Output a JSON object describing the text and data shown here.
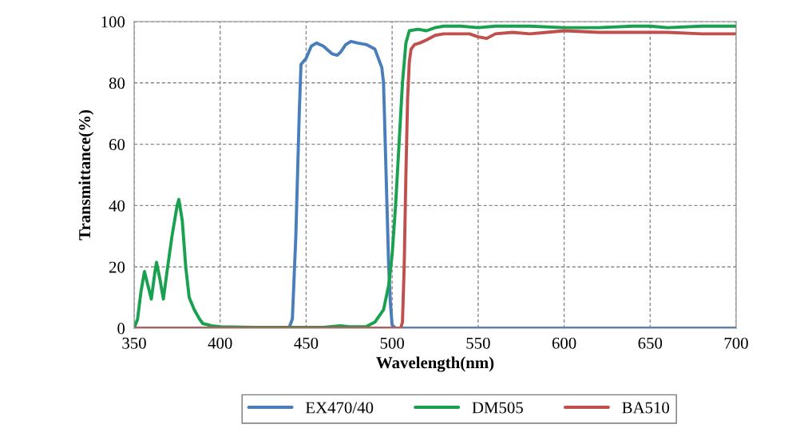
{
  "chart_data": {
    "type": "line",
    "xlabel": "Wavelength(nm)",
    "ylabel": "Transmittance(%)",
    "xlim": [
      350,
      700
    ],
    "xticks": [
      350,
      400,
      450,
      500,
      550,
      600,
      650,
      700
    ],
    "ylim": [
      0,
      100
    ],
    "yticks": [
      0,
      20,
      40,
      60,
      80,
      100
    ],
    "grid": true,
    "legend": "bottom",
    "series": [
      {
        "name": "EX470/40",
        "color": "#4a7ebb",
        "x": [
          350,
          440,
          442,
          444,
          446,
          447,
          450,
          453,
          456,
          460,
          465,
          468,
          470,
          473,
          476,
          480,
          485,
          490,
          492,
          494,
          495,
          496,
          497,
          498,
          499,
          500,
          502,
          700
        ],
        "values": [
          0,
          0,
          3,
          30,
          70,
          86,
          88,
          92,
          93,
          92,
          89.5,
          89,
          90,
          92.5,
          93.5,
          93,
          92.5,
          91,
          88,
          85,
          80,
          60,
          40,
          20,
          8,
          1,
          0,
          0
        ]
      },
      {
        "name": "DM505",
        "color": "#1aa150",
        "x": [
          350,
          352,
          354,
          356,
          358,
          360,
          362,
          363,
          365,
          367,
          369,
          372,
          375,
          376,
          378,
          380,
          382,
          385,
          388,
          390,
          395,
          400,
          420,
          440,
          460,
          470,
          475,
          485,
          490,
          495,
          498,
          500,
          502,
          504,
          506,
          508,
          510,
          515,
          520,
          525,
          530,
          540,
          550,
          560,
          580,
          600,
          620,
          640,
          650,
          660,
          680,
          700
        ],
        "values": [
          0,
          3,
          12,
          18.5,
          14,
          9.5,
          18,
          21.5,
          16,
          9.5,
          18,
          30,
          40,
          42,
          35,
          20,
          10,
          6,
          3,
          1.5,
          0.8,
          0.5,
          0.3,
          0.3,
          0.3,
          0.8,
          0.5,
          0.5,
          2,
          6,
          14,
          24,
          40,
          60,
          80,
          93,
          97,
          97.5,
          97,
          98,
          98.5,
          98.5,
          98,
          98.5,
          98.5,
          98,
          98,
          98.5,
          98.5,
          98,
          98.5,
          98.5
        ]
      },
      {
        "name": "BA510",
        "color": "#c0504d",
        "x": [
          350,
          505,
          506,
          507,
          508,
          509,
          510,
          511,
          513,
          516,
          520,
          525,
          530,
          540,
          545,
          550,
          555,
          560,
          570,
          580,
          590,
          600,
          620,
          640,
          660,
          680,
          700
        ],
        "values": [
          0,
          0,
          2,
          20,
          50,
          75,
          87,
          91,
          92.5,
          93,
          94,
          95.5,
          96,
          96,
          96,
          95,
          94.5,
          96,
          96.5,
          96,
          96.5,
          97,
          96.5,
          96.5,
          96.5,
          96,
          96
        ]
      }
    ]
  }
}
